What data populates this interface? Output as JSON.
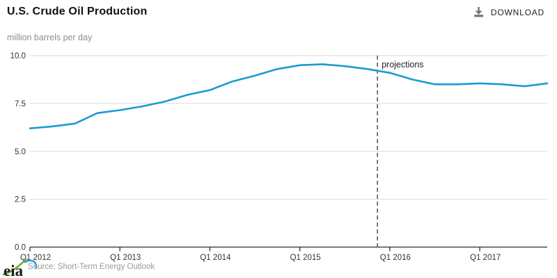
{
  "header": {
    "title": "U.S. Crude Oil Production",
    "download_label": "DOWNLOAD"
  },
  "subtitle": "million barrels per day",
  "footer": {
    "logo_text": "eia",
    "source": "Source: Short-Term Energy Outlook"
  },
  "chart_data": {
    "type": "line",
    "title": "U.S. Crude Oil Production",
    "xlabel": "",
    "ylabel": "million barrels per day",
    "x": [
      "Q1 2012",
      "Q2 2012",
      "Q3 2012",
      "Q4 2012",
      "Q1 2013",
      "Q2 2013",
      "Q3 2013",
      "Q4 2013",
      "Q1 2014",
      "Q2 2014",
      "Q3 2014",
      "Q4 2014",
      "Q1 2015",
      "Q2 2015",
      "Q3 2015",
      "Q4 2015",
      "Q1 2016",
      "Q2 2016",
      "Q3 2016",
      "Q4 2016",
      "Q1 2017",
      "Q2 2017",
      "Q3 2017",
      "Q4 2017"
    ],
    "values": [
      6.2,
      6.3,
      6.45,
      7.0,
      7.15,
      7.35,
      7.6,
      7.95,
      8.2,
      8.65,
      8.95,
      9.3,
      9.5,
      9.55,
      9.45,
      9.3,
      9.1,
      8.75,
      8.5,
      8.5,
      8.55,
      8.5,
      8.4,
      8.55
    ],
    "ylim": [
      0,
      10
    ],
    "yticks": [
      0.0,
      2.5,
      5.0,
      7.5,
      10.0
    ],
    "ytick_labels": [
      "0.0",
      "2.5",
      "5.0",
      "7.5",
      "10.0"
    ],
    "xtick_indices": [
      0,
      4,
      8,
      12,
      16,
      20
    ],
    "xtick_labels": [
      "Q1 2012",
      "Q1 2013",
      "Q1 2014",
      "Q1 2015",
      "Q1 2016",
      "Q1 2017"
    ],
    "projection": {
      "label": "projections",
      "index": 15.45
    },
    "grid": true,
    "legend": "none",
    "colors": {
      "line": "#1a9ad2",
      "grid": "#d9d9d9",
      "axis": "#2b2b2b",
      "tick_label": "#333333",
      "projection_line": "#595959",
      "projection_label": "#222222"
    }
  }
}
